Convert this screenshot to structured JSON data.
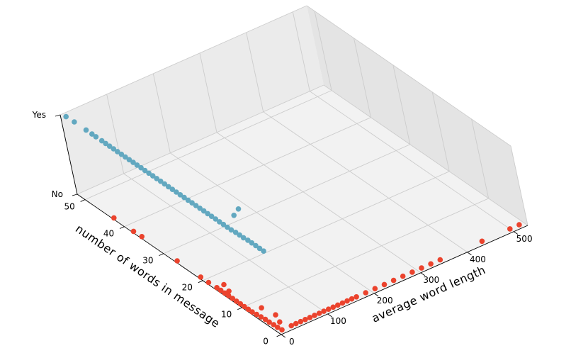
{
  "chart_data": {
    "type": "scatter",
    "projection": "3d",
    "xlabel": "average word length",
    "ylabel": "number of words in message",
    "zlabel": "",
    "xlim": [
      0,
      530
    ],
    "ylim": [
      0,
      52
    ],
    "zlim": [
      0,
      1
    ],
    "x_ticks": [
      0,
      100,
      200,
      300,
      400,
      500
    ],
    "y_ticks": [
      0,
      10,
      20,
      30,
      40,
      50
    ],
    "z_ticks": [
      0,
      1
    ],
    "z_tick_labels": [
      "No",
      "Yes"
    ],
    "grid": true,
    "colors": {
      "Yes": "#62a8c0",
      "No": "#eb432d",
      "pane_back": "#ebebeb",
      "pane_floor": "#f2f2f2",
      "pane_side": "#e4e4e4",
      "grid": "#cccccc"
    },
    "series": [
      {
        "class": "Yes",
        "color": "#62a8c0",
        "points": [
          [
            4,
            51,
            1
          ],
          [
            5,
            49,
            1
          ],
          [
            5,
            46,
            1
          ],
          [
            5,
            44.5,
            1
          ],
          [
            5,
            43.5,
            1
          ],
          [
            5,
            42,
            1
          ],
          [
            5,
            41,
            1
          ],
          [
            5,
            40,
            1
          ],
          [
            5,
            39,
            1
          ],
          [
            5,
            38,
            1
          ],
          [
            5,
            37,
            1
          ],
          [
            5,
            36,
            1
          ],
          [
            5,
            35,
            1
          ],
          [
            5,
            34,
            1
          ],
          [
            5,
            33,
            1
          ],
          [
            5,
            32,
            1
          ],
          [
            5,
            31,
            1
          ],
          [
            5,
            30,
            1
          ],
          [
            5,
            29,
            1
          ],
          [
            5,
            28,
            1
          ],
          [
            5,
            27,
            1
          ],
          [
            5,
            26,
            1
          ],
          [
            5,
            25,
            1
          ],
          [
            5,
            24,
            1
          ],
          [
            5,
            23,
            1
          ],
          [
            5,
            22,
            1
          ],
          [
            5,
            21,
            1
          ],
          [
            5,
            20,
            1
          ],
          [
            5,
            19,
            1
          ],
          [
            5,
            18,
            1
          ],
          [
            5,
            17,
            1
          ],
          [
            5,
            16,
            1
          ],
          [
            5,
            15,
            1
          ],
          [
            5,
            14,
            1
          ],
          [
            5,
            13,
            1
          ],
          [
            5,
            12,
            1
          ],
          [
            5,
            11,
            1
          ],
          [
            5,
            10,
            1
          ],
          [
            5,
            9,
            1
          ],
          [
            6,
            8,
            1
          ],
          [
            6,
            7,
            1
          ],
          [
            6,
            6,
            1
          ],
          [
            7,
            5,
            1
          ],
          [
            7,
            4,
            1
          ],
          [
            7,
            3,
            1
          ],
          [
            7,
            2,
            1
          ],
          [
            7,
            1,
            1
          ],
          [
            36,
            12,
            1
          ],
          [
            54,
            13,
            1
          ]
        ]
      },
      {
        "class": "No",
        "color": "#eb432d",
        "points": [
          [
            3,
            43,
            0
          ],
          [
            3,
            38,
            0
          ],
          [
            4,
            36,
            0
          ],
          [
            4,
            27,
            0
          ],
          [
            4,
            21,
            0
          ],
          [
            4,
            19,
            0
          ],
          [
            5,
            17,
            0
          ],
          [
            5,
            16,
            0
          ],
          [
            5,
            15,
            0
          ],
          [
            5,
            14,
            0
          ],
          [
            5,
            13,
            0
          ],
          [
            5,
            12,
            0
          ],
          [
            5,
            11,
            0
          ],
          [
            5,
            10,
            0
          ],
          [
            5,
            9,
            0
          ],
          [
            5,
            8,
            0
          ],
          [
            6,
            7,
            0
          ],
          [
            7,
            6,
            0
          ],
          [
            8,
            5,
            0
          ],
          [
            8,
            4,
            0
          ],
          [
            9,
            3,
            0
          ],
          [
            9,
            2,
            0
          ],
          [
            10,
            1,
            0
          ],
          [
            14,
            15,
            0
          ],
          [
            20,
            17,
            0
          ],
          [
            25,
            8,
            0
          ],
          [
            30,
            5,
            0
          ],
          [
            22,
            3,
            0
          ],
          [
            30,
            1,
            0
          ],
          [
            40,
            1,
            0
          ],
          [
            50,
            1,
            0
          ],
          [
            60,
            1,
            0
          ],
          [
            70,
            1,
            0
          ],
          [
            80,
            1,
            0
          ],
          [
            90,
            1,
            0
          ],
          [
            100,
            1,
            0
          ],
          [
            110,
            1,
            0
          ],
          [
            120,
            1,
            0
          ],
          [
            130,
            1,
            0
          ],
          [
            140,
            1,
            0
          ],
          [
            150,
            1,
            0
          ],
          [
            160,
            1,
            0
          ],
          [
            170,
            1,
            0
          ],
          [
            190,
            1,
            0
          ],
          [
            210,
            1,
            0
          ],
          [
            230,
            1,
            0
          ],
          [
            250,
            1,
            0
          ],
          [
            270,
            1,
            0
          ],
          [
            290,
            1,
            0
          ],
          [
            310,
            1,
            0
          ],
          [
            330,
            1,
            0
          ],
          [
            350,
            1,
            0
          ],
          [
            440,
            1,
            0
          ],
          [
            500,
            1,
            0
          ],
          [
            520,
            1,
            0
          ]
        ]
      }
    ]
  }
}
